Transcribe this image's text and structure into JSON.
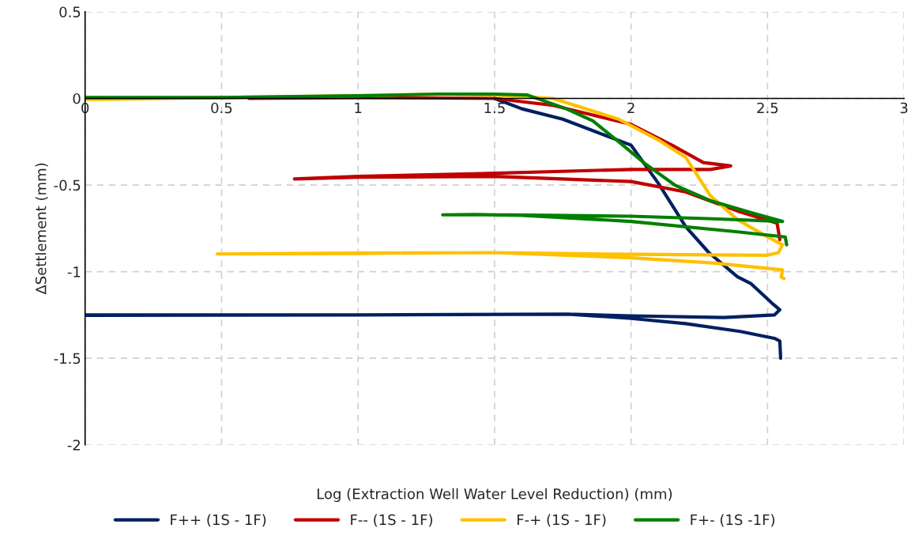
{
  "chart_data": {
    "type": "line",
    "xlabel": "Log (Extraction Well Water Level Reduction) (mm)",
    "ylabel": "∆Settlement (mm)",
    "xlim": [
      0,
      3
    ],
    "xticks": [
      0,
      0.5,
      1,
      1.5,
      2,
      2.5,
      3
    ],
    "ylim": [
      -2,
      0.5
    ],
    "yticks": [
      0.5,
      0,
      -0.5,
      -1,
      -1.5,
      -2
    ],
    "grid": true,
    "legend": "bottom",
    "marker": "none",
    "line_style": "solid",
    "series": [
      {
        "name": "F++ (1S - 1F)",
        "color": "#002060",
        "x": [
          1.5,
          1.6,
          1.75,
          1.9,
          2.0,
          2.1,
          2.2,
          2.285,
          2.39,
          2.44,
          2.515,
          2.545,
          2.525,
          2.34,
          2.0,
          1.77,
          1.0,
          0,
          0,
          1.0,
          1.77,
          2.0,
          2.2,
          2.4,
          2.525,
          2.545,
          2.548
        ],
        "values": [
          0.0,
          -0.06,
          -0.12,
          -0.21,
          -0.27,
          -0.49,
          -0.74,
          -0.89,
          -1.03,
          -1.07,
          -1.18,
          -1.22,
          -1.25,
          -1.265,
          -1.255,
          -1.245,
          -1.25,
          -1.25,
          -1.252,
          -1.25,
          -1.245,
          -1.27,
          -1.3,
          -1.345,
          -1.385,
          -1.4,
          -1.5
        ]
      },
      {
        "name": "F-- (1S - 1F)",
        "color": "#c00000",
        "x": [
          0.6,
          1.0,
          1.5,
          1.714,
          2.0,
          2.15,
          2.265,
          2.365,
          2.29,
          2.0,
          1.425,
          1.0,
          0.767,
          1.0,
          1.5,
          2.0,
          2.2,
          2.39,
          2.535,
          2.545
        ],
        "values": [
          0,
          0.005,
          0.0,
          -0.04,
          -0.15,
          -0.27,
          -0.37,
          -0.39,
          -0.41,
          -0.41,
          -0.435,
          -0.45,
          -0.465,
          -0.455,
          -0.45,
          -0.48,
          -0.54,
          -0.65,
          -0.72,
          -0.815
        ]
      },
      {
        "name": "F-+ (1S - 1F)",
        "color": "#ffc000",
        "x": [
          0,
          0.08,
          0.5,
          1.0,
          1.3,
          1.5,
          1.714,
          1.955,
          2.1,
          2.2,
          2.29,
          2.39,
          2.49,
          2.555,
          2.54,
          2.5,
          2.0,
          1.5,
          1.0,
          0.484,
          1.0,
          1.5,
          2.0,
          2.3,
          2.555,
          2.55,
          2.56
        ],
        "values": [
          -0.005,
          -0.005,
          0.005,
          0.015,
          0.025,
          0.02,
          0.0,
          -0.12,
          -0.24,
          -0.34,
          -0.56,
          -0.7,
          -0.79,
          -0.845,
          -0.89,
          -0.905,
          -0.9,
          -0.89,
          -0.893,
          -0.898,
          -0.895,
          -0.89,
          -0.92,
          -0.95,
          -0.99,
          -1.03,
          -1.04
        ]
      },
      {
        "name": "F+- (1S -1F)",
        "color": "#008000",
        "x": [
          0,
          0.5,
          1.0,
          1.3,
          1.5,
          1.62,
          1.763,
          1.86,
          1.955,
          2.05,
          2.16,
          2.29,
          2.44,
          2.555,
          2.3,
          2.0,
          1.425,
          1.31,
          1.425,
          1.6,
          2.0,
          2.39,
          2.565,
          2.57
        ],
        "values": [
          0.005,
          0.005,
          0.015,
          0.025,
          0.025,
          0.02,
          -0.06,
          -0.13,
          -0.25,
          -0.375,
          -0.5,
          -0.59,
          -0.66,
          -0.71,
          -0.695,
          -0.68,
          -0.67,
          -0.672,
          -0.67,
          -0.675,
          -0.71,
          -0.77,
          -0.8,
          -0.845
        ]
      }
    ]
  }
}
